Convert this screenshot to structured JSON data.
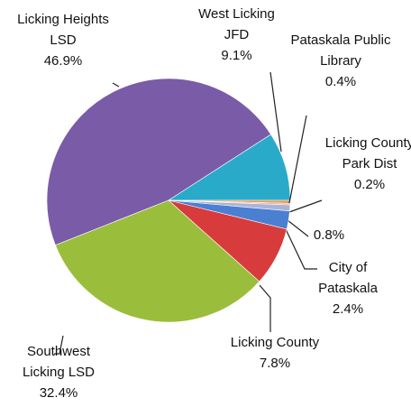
{
  "chart_data": {
    "type": "pie",
    "categories": [
      "Licking Heights LSD",
      "West Licking JFD",
      "Pataskala Public Library",
      "Licking County Park Dist",
      null,
      "City of Pataskala",
      "Licking County",
      "Southwest Licking LSD"
    ],
    "values": [
      46.9,
      9.1,
      0.4,
      0.2,
      0.8,
      2.4,
      7.8,
      32.4
    ],
    "value_labels": [
      "46.9%",
      "9.1%",
      "0.4%",
      "0.2%",
      "0.8%",
      "2.4%",
      "7.8%",
      "32.4%"
    ],
    "colors": [
      "#7a5ba8",
      "#2aaac9",
      "#f09a4e",
      "#d79a9a",
      "#a9b4d8",
      "#4a7fd2",
      "#d83b3b",
      "#9bbd3c"
    ]
  }
}
